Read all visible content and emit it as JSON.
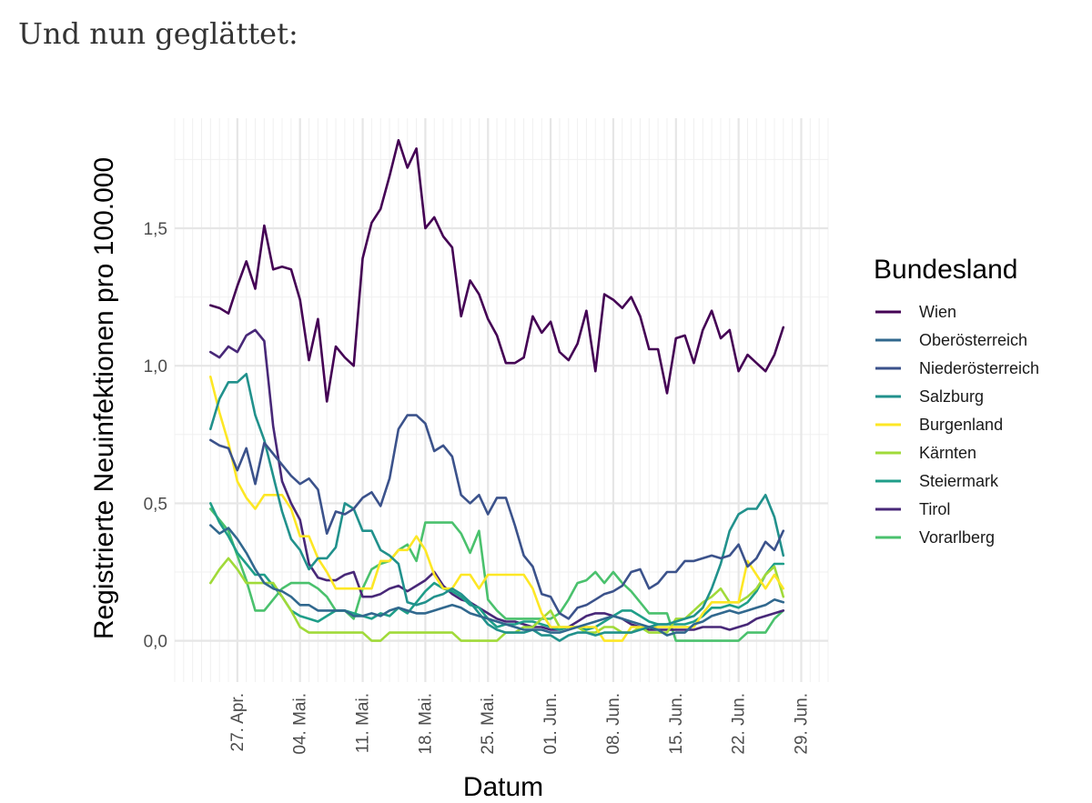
{
  "page": {
    "heading": "Und nun geglättet:"
  },
  "chart_data": {
    "type": "line",
    "title": "",
    "xlabel": "Datum",
    "ylabel": "Registrierte Neuinfektionen pro 100.000",
    "x_start_day": 0,
    "x_start_label": "24. Apr.",
    "xlim": [
      -4,
      69
    ],
    "ylim": [
      -0.15,
      1.9
    ],
    "x_ticks": [
      {
        "day": 3,
        "label": "27. Apr."
      },
      {
        "day": 10,
        "label": "04. Mai."
      },
      {
        "day": 17,
        "label": "11. Mai."
      },
      {
        "day": 24,
        "label": "18. Mai."
      },
      {
        "day": 31,
        "label": "25. Mai."
      },
      {
        "day": 38,
        "label": "01. Jun."
      },
      {
        "day": 45,
        "label": "08. Jun."
      },
      {
        "day": 52,
        "label": "15. Jun."
      },
      {
        "day": 59,
        "label": "22. Jun."
      },
      {
        "day": 66,
        "label": "29. Jun."
      }
    ],
    "y_ticks": [
      {
        "value": 0.0,
        "label": "0,0"
      },
      {
        "value": 0.5,
        "label": "0,5"
      },
      {
        "value": 1.0,
        "label": "1,0"
      },
      {
        "value": 1.5,
        "label": "1,5"
      }
    ],
    "legend": {
      "title": "Bundesland",
      "position": "right"
    },
    "series": [
      {
        "name": "Wien",
        "color": "#440154",
        "values": [
          1.22,
          1.21,
          1.19,
          1.29,
          1.38,
          1.28,
          1.51,
          1.35,
          1.36,
          1.35,
          1.24,
          1.02,
          1.17,
          0.87,
          1.07,
          1.03,
          1.0,
          1.39,
          1.52,
          1.57,
          1.69,
          1.82,
          1.72,
          1.79,
          1.5,
          1.54,
          1.47,
          1.43,
          1.18,
          1.31,
          1.26,
          1.17,
          1.11,
          1.01,
          1.01,
          1.03,
          1.18,
          1.12,
          1.16,
          1.05,
          1.02,
          1.08,
          1.2,
          0.98,
          1.26,
          1.24,
          1.21,
          1.25,
          1.18,
          1.06,
          1.06,
          0.9,
          1.1,
          1.11,
          1.01,
          1.13,
          1.2,
          1.1,
          1.13,
          0.98,
          1.04,
          1.01,
          0.98,
          1.04,
          1.14
        ]
      },
      {
        "name": "Oberösterreich",
        "color": "#31688e",
        "values": [
          0.42,
          0.39,
          0.41,
          0.37,
          0.32,
          0.26,
          0.21,
          0.19,
          0.18,
          0.16,
          0.13,
          0.13,
          0.11,
          0.11,
          0.11,
          0.11,
          0.09,
          0.09,
          0.1,
          0.09,
          0.11,
          0.12,
          0.11,
          0.1,
          0.1,
          0.11,
          0.12,
          0.13,
          0.12,
          0.1,
          0.09,
          0.08,
          0.07,
          0.06,
          0.05,
          0.04,
          0.04,
          0.04,
          0.03,
          0.03,
          0.04,
          0.05,
          0.06,
          0.07,
          0.08,
          0.09,
          0.08,
          0.07,
          0.06,
          0.05,
          0.04,
          0.02,
          0.03,
          0.03,
          0.06,
          0.07,
          0.09,
          0.1,
          0.11,
          0.1,
          0.11,
          0.12,
          0.13,
          0.15,
          0.14
        ]
      },
      {
        "name": "Niederösterreich",
        "color": "#3b528b",
        "values": [
          0.73,
          0.71,
          0.7,
          0.62,
          0.7,
          0.57,
          0.72,
          0.68,
          0.64,
          0.6,
          0.57,
          0.59,
          0.55,
          0.39,
          0.47,
          0.46,
          0.48,
          0.52,
          0.54,
          0.49,
          0.59,
          0.77,
          0.82,
          0.82,
          0.79,
          0.69,
          0.71,
          0.67,
          0.53,
          0.5,
          0.53,
          0.46,
          0.52,
          0.52,
          0.42,
          0.31,
          0.27,
          0.17,
          0.16,
          0.1,
          0.08,
          0.12,
          0.13,
          0.15,
          0.17,
          0.18,
          0.2,
          0.25,
          0.26,
          0.19,
          0.21,
          0.25,
          0.25,
          0.29,
          0.29,
          0.3,
          0.31,
          0.3,
          0.31,
          0.35,
          0.27,
          0.3,
          0.36,
          0.33,
          0.4
        ]
      },
      {
        "name": "Salzburg",
        "color": "#21918c",
        "values": [
          0.77,
          0.88,
          0.94,
          0.94,
          0.97,
          0.82,
          0.73,
          0.6,
          0.47,
          0.37,
          0.33,
          0.26,
          0.3,
          0.3,
          0.34,
          0.5,
          0.48,
          0.4,
          0.4,
          0.33,
          0.31,
          0.28,
          0.14,
          0.13,
          0.14,
          0.16,
          0.17,
          0.19,
          0.17,
          0.14,
          0.1,
          0.06,
          0.04,
          0.03,
          0.03,
          0.03,
          0.04,
          0.02,
          0.02,
          0.0,
          0.02,
          0.03,
          0.03,
          0.02,
          0.03,
          0.03,
          0.03,
          0.03,
          0.04,
          0.05,
          0.06,
          0.06,
          0.07,
          0.08,
          0.09,
          0.12,
          0.19,
          0.28,
          0.4,
          0.46,
          0.48,
          0.48,
          0.53,
          0.45,
          0.31
        ]
      },
      {
        "name": "Burgenland",
        "color": "#fde725",
        "values": [
          0.96,
          0.83,
          0.72,
          0.58,
          0.52,
          0.48,
          0.53,
          0.53,
          0.53,
          0.48,
          0.38,
          0.38,
          0.3,
          0.25,
          0.19,
          0.19,
          0.19,
          0.19,
          0.19,
          0.29,
          0.29,
          0.33,
          0.33,
          0.38,
          0.33,
          0.24,
          0.19,
          0.19,
          0.24,
          0.24,
          0.19,
          0.24,
          0.24,
          0.24,
          0.24,
          0.24,
          0.19,
          0.1,
          0.05,
          0.05,
          0.05,
          0.05,
          0.05,
          0.05,
          0.0,
          0.0,
          0.0,
          0.05,
          0.05,
          0.05,
          0.05,
          0.05,
          0.05,
          0.05,
          0.05,
          0.1,
          0.14,
          0.14,
          0.14,
          0.14,
          0.29,
          0.24,
          0.19,
          0.24,
          0.19
        ]
      },
      {
        "name": "Kärnten",
        "color": "#a0da39",
        "values": [
          0.21,
          0.26,
          0.3,
          0.26,
          0.21,
          0.21,
          0.21,
          0.21,
          0.16,
          0.11,
          0.05,
          0.03,
          0.03,
          0.03,
          0.03,
          0.03,
          0.03,
          0.03,
          0.0,
          0.0,
          0.03,
          0.03,
          0.03,
          0.03,
          0.03,
          0.03,
          0.03,
          0.03,
          0.0,
          0.0,
          0.0,
          0.0,
          0.0,
          0.03,
          0.03,
          0.05,
          0.05,
          0.08,
          0.11,
          0.05,
          0.05,
          0.05,
          0.03,
          0.03,
          0.05,
          0.05,
          0.03,
          0.03,
          0.05,
          0.03,
          0.03,
          0.03,
          0.08,
          0.08,
          0.11,
          0.14,
          0.16,
          0.19,
          0.14,
          0.14,
          0.16,
          0.19,
          0.24,
          0.27,
          0.16
        ]
      },
      {
        "name": "Steiermark",
        "color": "#1f9e89",
        "values": [
          0.5,
          0.43,
          0.38,
          0.32,
          0.28,
          0.24,
          0.24,
          0.2,
          0.16,
          0.11,
          0.09,
          0.08,
          0.07,
          0.09,
          0.11,
          0.11,
          0.1,
          0.09,
          0.08,
          0.1,
          0.09,
          0.12,
          0.1,
          0.14,
          0.18,
          0.21,
          0.19,
          0.18,
          0.16,
          0.13,
          0.12,
          0.08,
          0.05,
          0.06,
          0.06,
          0.07,
          0.07,
          0.06,
          0.05,
          0.04,
          0.05,
          0.05,
          0.04,
          0.05,
          0.07,
          0.09,
          0.11,
          0.11,
          0.09,
          0.07,
          0.06,
          0.06,
          0.06,
          0.06,
          0.07,
          0.09,
          0.12,
          0.12,
          0.13,
          0.12,
          0.14,
          0.18,
          0.24,
          0.28,
          0.28
        ]
      },
      {
        "name": "Tirol",
        "color": "#482878",
        "values": [
          1.05,
          1.03,
          1.07,
          1.05,
          1.11,
          1.13,
          1.09,
          0.78,
          0.58,
          0.5,
          0.44,
          0.28,
          0.23,
          0.22,
          0.22,
          0.24,
          0.25,
          0.16,
          0.16,
          0.17,
          0.19,
          0.2,
          0.18,
          0.2,
          0.22,
          0.25,
          0.2,
          0.17,
          0.15,
          0.14,
          0.12,
          0.1,
          0.08,
          0.07,
          0.07,
          0.06,
          0.05,
          0.05,
          0.04,
          0.04,
          0.05,
          0.07,
          0.09,
          0.1,
          0.1,
          0.09,
          0.08,
          0.06,
          0.05,
          0.04,
          0.04,
          0.04,
          0.04,
          0.04,
          0.04,
          0.05,
          0.05,
          0.05,
          0.04,
          0.05,
          0.06,
          0.08,
          0.09,
          0.1,
          0.11
        ]
      },
      {
        "name": "Vorarlberg",
        "color": "#4ac16d",
        "values": [
          0.48,
          0.44,
          0.4,
          0.31,
          0.22,
          0.11,
          0.11,
          0.15,
          0.19,
          0.21,
          0.21,
          0.21,
          0.19,
          0.16,
          0.11,
          0.11,
          0.08,
          0.19,
          0.26,
          0.28,
          0.29,
          0.33,
          0.35,
          0.29,
          0.43,
          0.43,
          0.43,
          0.43,
          0.39,
          0.32,
          0.4,
          0.15,
          0.11,
          0.08,
          0.08,
          0.08,
          0.08,
          0.08,
          0.08,
          0.1,
          0.15,
          0.21,
          0.22,
          0.25,
          0.21,
          0.25,
          0.21,
          0.18,
          0.14,
          0.1,
          0.1,
          0.1,
          0.0,
          0.0,
          0.0,
          0.0,
          0.0,
          0.0,
          0.0,
          0.0,
          0.03,
          0.03,
          0.03,
          0.08,
          0.11
        ]
      }
    ]
  }
}
